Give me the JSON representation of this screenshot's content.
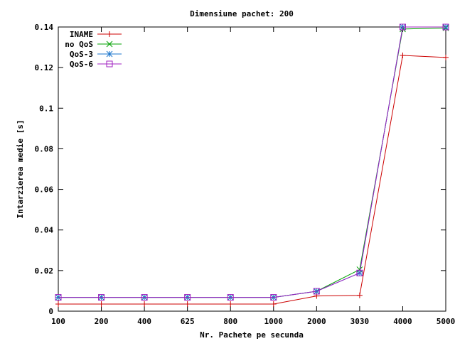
{
  "chart_data": {
    "type": "line",
    "title": "Dimensiune pachet: 200",
    "xlabel": "Nr. Pachete pe secunda",
    "ylabel": "Intarzierea medie [s]",
    "categories": [
      "100",
      "200",
      "400",
      "625",
      "800",
      "1000",
      "2000",
      "3030",
      "4000",
      "5000"
    ],
    "ylim": [
      0,
      0.14
    ],
    "yticks": [
      "0",
      "0.02",
      "0.04",
      "0.06",
      "0.08",
      "0.1",
      "0.12",
      "0.14"
    ],
    "ytick_values": [
      0,
      0.02,
      0.04,
      0.06,
      0.08,
      0.1,
      0.12,
      0.14
    ],
    "grid": false,
    "legend_position": "top-left",
    "series": [
      {
        "name": "INAME",
        "color": "#cc0000",
        "marker": "plus",
        "values": [
          0.0035,
          0.0035,
          0.0035,
          0.0035,
          0.0035,
          0.0035,
          0.0075,
          0.0078,
          0.126,
          0.125
        ]
      },
      {
        "name": "no QoS",
        "color": "#00a000",
        "marker": "cross",
        "values": [
          0.0068,
          0.0068,
          0.0068,
          0.0068,
          0.0068,
          0.0068,
          0.0098,
          0.0205,
          0.139,
          0.1395
        ]
      },
      {
        "name": "QoS-3",
        "color": "#1a75cc",
        "marker": "star",
        "values": [
          0.0068,
          0.0068,
          0.0068,
          0.0068,
          0.0068,
          0.0068,
          0.0098,
          0.0188,
          0.14,
          0.14
        ]
      },
      {
        "name": "QoS-6",
        "color": "#a020c0",
        "marker": "square",
        "values": [
          0.0068,
          0.0068,
          0.0068,
          0.0068,
          0.0068,
          0.0068,
          0.0098,
          0.0188,
          0.14,
          0.14
        ]
      }
    ]
  }
}
